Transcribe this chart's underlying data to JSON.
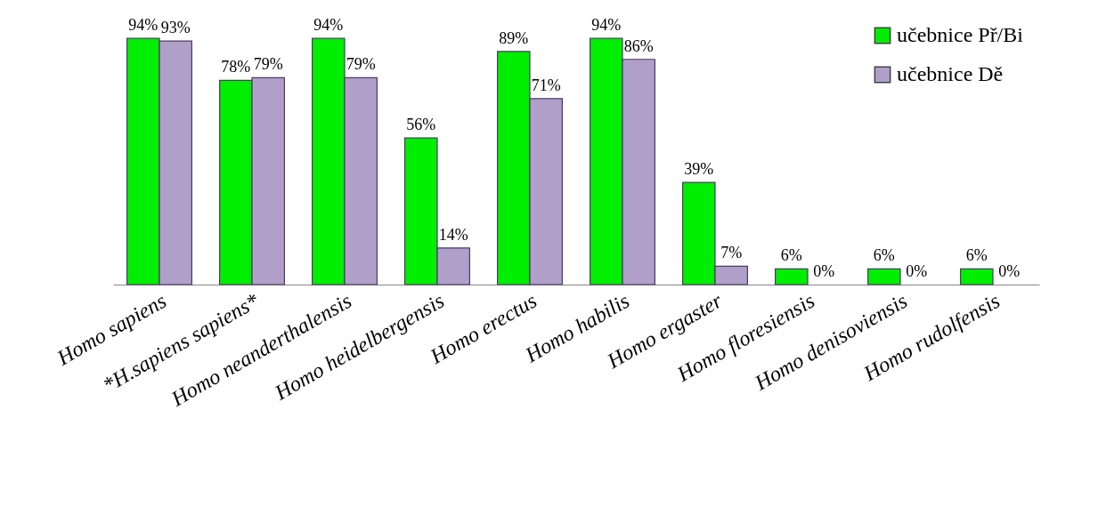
{
  "chart_data": {
    "type": "bar",
    "categories": [
      "Homo sapiens",
      "*H.sapiens sapiens*",
      "Homo neanderthalensis",
      "Homo heidelbergensis",
      "Homo erectus",
      "Homo habilis",
      "Homo ergaster",
      "Homo floresiensis",
      "Homo denisoviensis",
      "Homo rudolfensis"
    ],
    "series": [
      {
        "name": "učebnice Př/Bi",
        "color": "#00ee00",
        "values": [
          94,
          78,
          94,
          56,
          89,
          94,
          39,
          6,
          6,
          6
        ],
        "value_labels": [
          "94%",
          "78%",
          "94%",
          "56%",
          "89%",
          "94%",
          "39%",
          "6%",
          "6%",
          "6%"
        ]
      },
      {
        "name": "učebnice Dě",
        "color": "#b09fc8",
        "values": [
          93,
          79,
          79,
          14,
          71,
          86,
          7,
          0,
          0,
          0
        ],
        "value_labels": [
          "93%",
          "79%",
          "79%",
          "14%",
          "71%",
          "86%",
          "7%",
          "0%",
          "0%",
          "0%"
        ]
      }
    ],
    "legend": "top right",
    "grid": false
  }
}
